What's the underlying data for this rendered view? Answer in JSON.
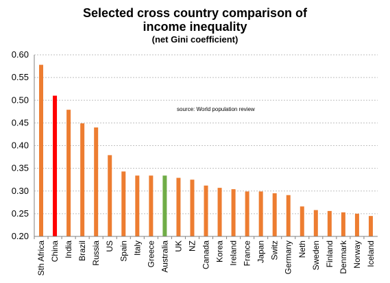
{
  "chart_data": {
    "type": "bar",
    "title": "Selected cross country comparison of",
    "title2": "income inequality",
    "subtitle": "(net Gini coefficient)",
    "annotation": "source:  World population  review",
    "xlabel": "",
    "ylabel": "",
    "ylim": [
      0.2,
      0.6
    ],
    "yticks": [
      "0.60",
      "0.55",
      "0.50",
      "0.45",
      "0.40",
      "0.35",
      "0.30",
      "0.25",
      "0.20"
    ],
    "grid": true,
    "categories": [
      "Sth Africa",
      "China",
      "India",
      "Brazil",
      "Russia",
      "US",
      "Spain",
      "Italy",
      "Greece",
      "Australia",
      "UK",
      "NZ",
      "Canada",
      "Korea",
      "Ireland",
      "France",
      "Japan",
      "Switz",
      "Germany",
      "Neth",
      "Sweden",
      "Finland",
      "Denmark",
      "Norway",
      "Iceland"
    ],
    "values": [
      0.578,
      0.51,
      0.479,
      0.449,
      0.44,
      0.379,
      0.343,
      0.334,
      0.334,
      0.334,
      0.329,
      0.325,
      0.312,
      0.307,
      0.304,
      0.299,
      0.299,
      0.295,
      0.291,
      0.266,
      0.258,
      0.256,
      0.253,
      0.25,
      0.245
    ],
    "colors": {
      "default": "#ED7D31",
      "China": "#FF0000",
      "Australia": "#70AD47"
    }
  }
}
